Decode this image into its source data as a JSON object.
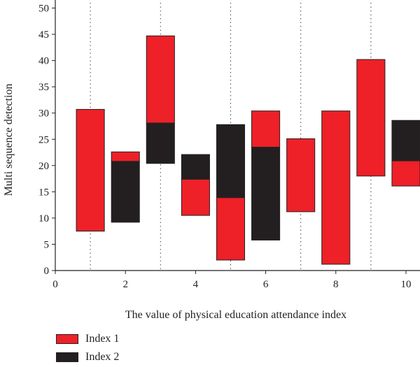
{
  "chart_data": {
    "type": "bar",
    "subtype": "floating-range",
    "xlabel": "The value of physical education attendance index",
    "ylabel": "Multi sequence detection",
    "xlim": [
      0,
      10.4
    ],
    "ylim": [
      0,
      51
    ],
    "x_ticks": [
      0,
      2,
      4,
      6,
      8,
      10
    ],
    "y_ticks": [
      0,
      5,
      10,
      15,
      20,
      25,
      30,
      35,
      40,
      45,
      50
    ],
    "dotted_vlines": [
      1,
      3,
      5,
      7,
      9
    ],
    "bar_width": 0.8,
    "colors": {
      "index1": "#ee2028",
      "index2": "#231f20"
    },
    "series": [
      {
        "name": "Index 1",
        "color": "#ee2028"
      },
      {
        "name": "Index 2",
        "color": "#231f20"
      }
    ],
    "bars": [
      {
        "x": 1,
        "segments": [
          {
            "series": 0,
            "from": 7.5,
            "to": 30.7
          }
        ]
      },
      {
        "x": 2,
        "segments": [
          {
            "series": 1,
            "from": 9.2,
            "to": 20.8
          },
          {
            "series": 0,
            "from": 20.8,
            "to": 22.6
          }
        ]
      },
      {
        "x": 3,
        "segments": [
          {
            "series": 1,
            "from": 20.4,
            "to": 28.1
          },
          {
            "series": 0,
            "from": 28.1,
            "to": 44.7
          }
        ]
      },
      {
        "x": 4,
        "segments": [
          {
            "series": 0,
            "from": 10.5,
            "to": 17.4
          },
          {
            "series": 1,
            "from": 17.4,
            "to": 22.1
          }
        ]
      },
      {
        "x": 5,
        "segments": [
          {
            "series": 0,
            "from": 2.0,
            "to": 13.9
          },
          {
            "series": 1,
            "from": 13.9,
            "to": 27.8
          }
        ]
      },
      {
        "x": 6,
        "segments": [
          {
            "series": 1,
            "from": 5.8,
            "to": 23.5
          },
          {
            "series": 0,
            "from": 23.5,
            "to": 30.4
          }
        ]
      },
      {
        "x": 7,
        "segments": [
          {
            "series": 0,
            "from": 11.2,
            "to": 25.1
          }
        ]
      },
      {
        "x": 8,
        "segments": [
          {
            "series": 0,
            "from": 1.2,
            "to": 30.4
          }
        ]
      },
      {
        "x": 9,
        "segments": [
          {
            "series": 0,
            "from": 18.0,
            "to": 40.2
          }
        ]
      },
      {
        "x": 10,
        "segments": [
          {
            "series": 0,
            "from": 16.1,
            "to": 20.9
          },
          {
            "series": 1,
            "from": 20.9,
            "to": 28.6
          }
        ]
      }
    ],
    "legend": {
      "position": "bottom-left"
    }
  }
}
